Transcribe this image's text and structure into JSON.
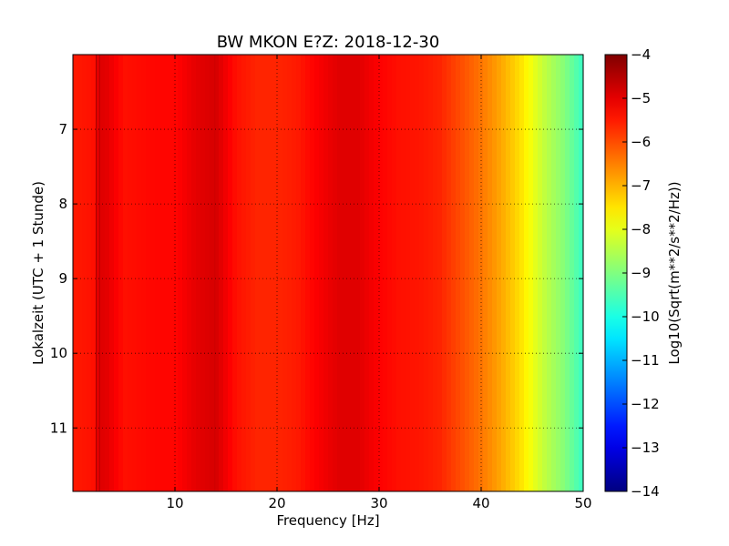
{
  "chart_data": {
    "type": "heatmap",
    "title": "BW MKON E?Z: 2018-12-30",
    "xlabel": "Frequency [Hz]",
    "ylabel": "Lokalzeit (UTC + 1 Stunde)",
    "colorbar_label": "Log10(Sqrt(m**2/s**2/Hz))",
    "xlim": [
      0,
      50
    ],
    "ylim": [
      11.85,
      6.0
    ],
    "y_inverted": true,
    "x_ticks": [
      10,
      20,
      30,
      40,
      50
    ],
    "x_tick_labels": [
      "10",
      "20",
      "30",
      "40",
      "50"
    ],
    "y_ticks": [
      7,
      8,
      9,
      10,
      11
    ],
    "y_tick_labels": [
      "7",
      "8",
      "9",
      "10",
      "11"
    ],
    "colorbar_range": [
      -14,
      -4
    ],
    "colorbar_ticks": [
      -4,
      -5,
      -6,
      -7,
      -8,
      -9,
      -10,
      -11,
      -12,
      -13,
      -14
    ],
    "colorbar_tick_labels": [
      "−4",
      "−5",
      "−6",
      "−7",
      "−8",
      "−9",
      "−10",
      "−11",
      "−12",
      "−13",
      "−14"
    ],
    "colormap": "jet",
    "grid": true,
    "spectrum_profile": {
      "frequency_hz": [
        0,
        2,
        3,
        5,
        8,
        10,
        12,
        14,
        16,
        18,
        20,
        22,
        24,
        26,
        28,
        30,
        32,
        34,
        36,
        37,
        38,
        40,
        42,
        44,
        45,
        46,
        48,
        50
      ],
      "log10_amplitude": [
        -5.5,
        -5.4,
        -4.9,
        -5.4,
        -5.3,
        -5.3,
        -5.0,
        -4.85,
        -5.4,
        -5.6,
        -5.6,
        -5.5,
        -5.2,
        -4.95,
        -4.95,
        -5.25,
        -5.4,
        -5.45,
        -5.6,
        -5.8,
        -6.0,
        -6.4,
        -6.9,
        -7.5,
        -7.9,
        -8.3,
        -8.9,
        -9.7
      ]
    },
    "vertical_lines_hz": [
      {
        "frequency": 2.3,
        "log10_amplitude": -4.5
      },
      {
        "frequency": 2.6,
        "log10_amplitude": -4.6
      },
      {
        "frequency": 13.9,
        "log10_amplitude": -4.8
      }
    ]
  }
}
